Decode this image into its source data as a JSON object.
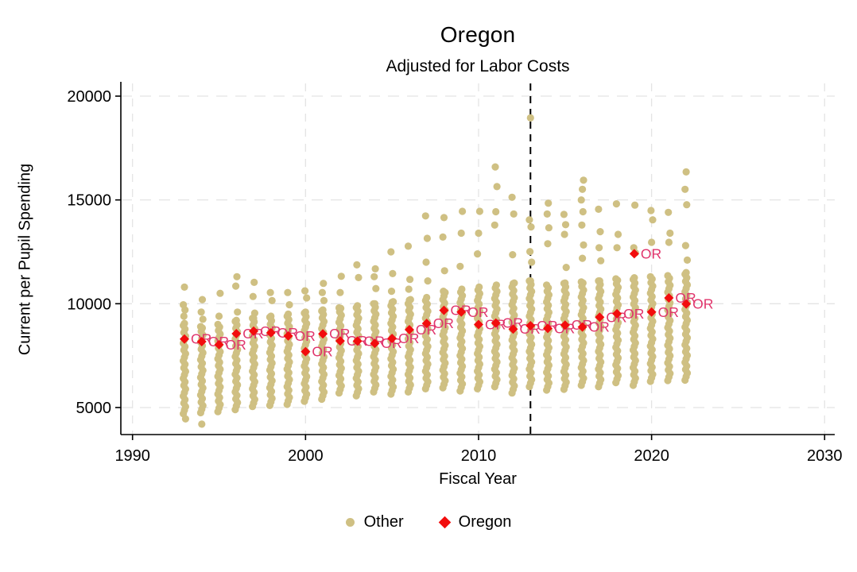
{
  "title": "Oregon",
  "subtitle": "Adjusted for Labor Costs",
  "legend": {
    "other_label": "Other",
    "oregon_label": "Oregon"
  },
  "chart_data": {
    "type": "scatter",
    "title": "Oregon",
    "subtitle": "Adjusted for Labor Costs",
    "xlabel": "Fiscal Year",
    "ylabel": "Current per Pupil Spending",
    "x_ticks": [
      1990,
      2000,
      2010,
      2020,
      2030
    ],
    "y_ticks": [
      5000,
      10000,
      15000,
      20000
    ],
    "xlim": [
      1989.3,
      2030.6
    ],
    "ylim": [
      3700,
      20600
    ],
    "grid": {
      "horizontal": true,
      "vertical": true,
      "style": "light-gray dashed"
    },
    "legend_position": "bottom-center",
    "vline": {
      "x": 2013,
      "style": "dashed",
      "color": "#000000"
    },
    "colors": {
      "other": "#cfc083",
      "oregon_marker": "#f20d0d",
      "oregon_label_text": "#e0346b",
      "grid": "#e4e4e4",
      "axis": "#000000"
    },
    "point_label": "OR",
    "oregon_series": {
      "name": "Oregon",
      "years": [
        1993,
        1994,
        1995,
        1996,
        1997,
        1998,
        1999,
        2000,
        2001,
        2002,
        2003,
        2004,
        2005,
        2006,
        2007,
        2008,
        2009,
        2010,
        2011,
        2012,
        2013,
        2014,
        2015,
        2016,
        2017,
        2018,
        2019,
        2020,
        2021,
        2022
      ],
      "values": [
        8300,
        8175,
        8025,
        8560,
        8680,
        8600,
        8450,
        7690,
        8550,
        8210,
        8200,
        8090,
        8330,
        8750,
        9050,
        9680,
        9600,
        9000,
        9070,
        8780,
        8940,
        8810,
        8970,
        8880,
        9350,
        9520,
        12410,
        9600,
        10280,
        9990
      ]
    },
    "other_series": {
      "name": "Other",
      "note": "dense = continuous band of overlapping state dots [min,max]; points = individually visible dots",
      "years": [
        {
          "year": 1993,
          "dense": [
            4700,
            9050
          ],
          "points": [
            4450,
            9400,
            9700,
            9950,
            10800
          ]
        },
        {
          "year": 1994,
          "dense": [
            4750,
            8900
          ],
          "points": [
            4200,
            9250,
            9600,
            10200
          ]
        },
        {
          "year": 1995,
          "dense": [
            4800,
            9000
          ],
          "points": [
            9400,
            10500
          ]
        },
        {
          "year": 1996,
          "dense": [
            4900,
            9200
          ],
          "points": [
            9600,
            10850,
            11300
          ]
        },
        {
          "year": 1997,
          "dense": [
            5050,
            9300
          ],
          "points": [
            9550,
            10350,
            11030
          ]
        },
        {
          "year": 1998,
          "dense": [
            5100,
            9400
          ],
          "points": [
            10150,
            10540
          ]
        },
        {
          "year": 1999,
          "dense": [
            5150,
            9500
          ],
          "points": [
            9950,
            10540
          ]
        },
        {
          "year": 2000,
          "dense": [
            5300,
            9600
          ],
          "points": [
            10280,
            10620
          ]
        },
        {
          "year": 2001,
          "dense": [
            5400,
            9700
          ],
          "points": [
            10150,
            10540,
            10980
          ]
        },
        {
          "year": 2002,
          "dense": [
            5700,
            9800
          ],
          "points": [
            10540,
            11320
          ]
        },
        {
          "year": 2003,
          "dense": [
            5560,
            9900
          ],
          "points": [
            11260,
            11870
          ]
        },
        {
          "year": 2004,
          "dense": [
            5750,
            10000
          ],
          "points": [
            10730,
            11300,
            11680
          ]
        },
        {
          "year": 2005,
          "dense": [
            5650,
            10100
          ],
          "points": [
            10600,
            11450,
            12500
          ]
        },
        {
          "year": 2006,
          "dense": [
            5750,
            10200
          ],
          "points": [
            10700,
            11170,
            12770
          ]
        },
        {
          "year": 2007,
          "dense": [
            5900,
            10300
          ],
          "points": [
            11100,
            12000,
            13150,
            14230
          ]
        },
        {
          "year": 2008,
          "dense": [
            5950,
            10600
          ],
          "points": [
            11590,
            13210,
            14150
          ]
        },
        {
          "year": 2009,
          "dense": [
            5800,
            10700
          ],
          "points": [
            11800,
            13400,
            14450
          ]
        },
        {
          "year": 2010,
          "dense": [
            5900,
            10800
          ],
          "points": [
            12400,
            13400,
            14450
          ]
        },
        {
          "year": 2011,
          "dense": [
            6000,
            10900
          ],
          "points": [
            13790,
            14430,
            15640,
            16590
          ]
        },
        {
          "year": 2012,
          "dense": [
            5700,
            11000
          ],
          "points": [
            12360,
            14320,
            15130
          ]
        },
        {
          "year": 2013,
          "dense": [
            6000,
            11100
          ],
          "points": [
            12000,
            12510,
            13700,
            14040,
            18950
          ]
        },
        {
          "year": 2014,
          "dense": [
            5840,
            10900
          ],
          "points": [
            12890,
            13660,
            14320,
            14840
          ]
        },
        {
          "year": 2015,
          "dense": [
            5880,
            11000
          ],
          "points": [
            11750,
            13340,
            13810,
            14300
          ]
        },
        {
          "year": 2016,
          "dense": [
            6070,
            11050
          ],
          "points": [
            12190,
            12830,
            13790,
            14430,
            15000,
            15510,
            15950
          ]
        },
        {
          "year": 2017,
          "dense": [
            6000,
            11100
          ],
          "points": [
            12070,
            12700,
            13470,
            14550
          ]
        },
        {
          "year": 2018,
          "dense": [
            6200,
            11200
          ],
          "points": [
            12700,
            13340,
            14810
          ]
        },
        {
          "year": 2019,
          "dense": [
            6070,
            11250
          ],
          "points": [
            12450,
            12700,
            14750
          ]
        },
        {
          "year": 2020,
          "dense": [
            6260,
            11300
          ],
          "points": [
            12960,
            14040,
            14490
          ]
        },
        {
          "year": 2021,
          "dense": [
            6300,
            11350
          ],
          "points": [
            12960,
            13400,
            14400
          ]
        },
        {
          "year": 2022,
          "dense": [
            6320,
            11500
          ],
          "points": [
            12100,
            12800,
            14770,
            15510,
            16350
          ]
        }
      ]
    }
  }
}
